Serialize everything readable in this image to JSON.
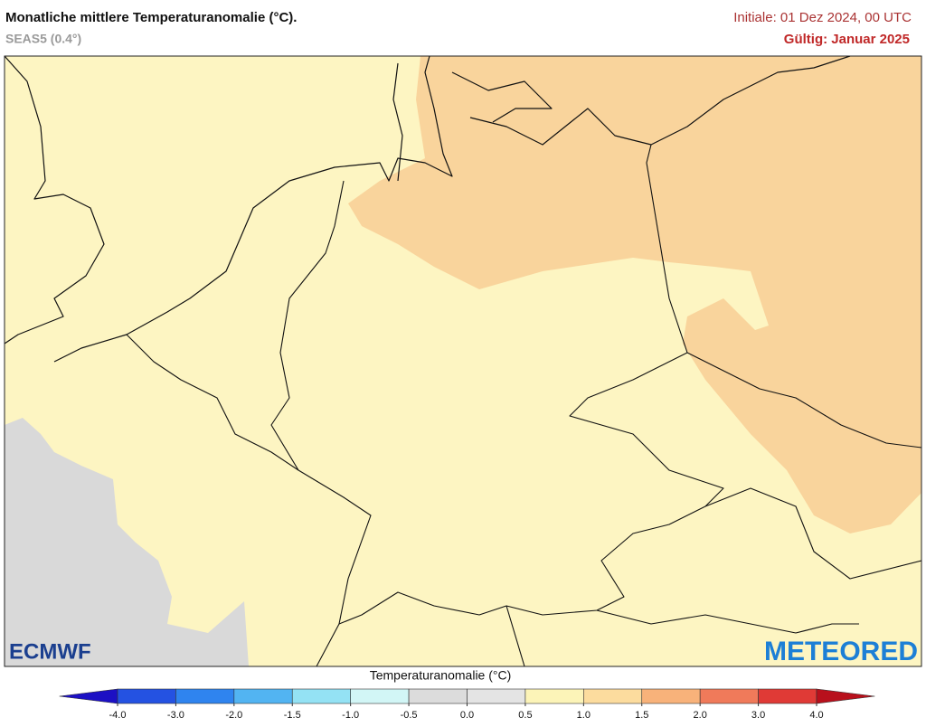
{
  "header": {
    "title": "Monatliche mittlere Temperaturanomalie (°C).",
    "subtitle": "SEAS5 (0.4°)",
    "initial": "Initiale: 01 Dez 2024, 00 UTC",
    "valid": "Gültig: Januar 2025"
  },
  "logos": {
    "left": "ECMWF",
    "right": "METEORED"
  },
  "legend": {
    "title": "Temperaturanomalie (°C)",
    "ticks": [
      {
        "value": -4,
        "label": "-4.0"
      },
      {
        "value": -3,
        "label": "-3.0"
      },
      {
        "value": -2,
        "label": "-2.0"
      },
      {
        "value": -1.5,
        "label": "-1.5"
      },
      {
        "value": -1,
        "label": "-1.0"
      },
      {
        "value": -0.5,
        "label": "-0.5"
      },
      {
        "value": 0,
        "label": "0.0"
      },
      {
        "value": 0.5,
        "label": "0.5"
      },
      {
        "value": 1,
        "label": "1.0"
      },
      {
        "value": 1.5,
        "label": "1.5"
      },
      {
        "value": 2,
        "label": "2.0"
      },
      {
        "value": 3,
        "label": "3.0"
      },
      {
        "value": 4,
        "label": "4.0"
      }
    ],
    "colors": [
      "#1c10c4",
      "#2452e2",
      "#2f84ef",
      "#52b4f2",
      "#94e2f4",
      "#d2f6f6",
      "#dcdcdc",
      "#e4e4e4",
      "#fcf4b8",
      "#fcdc9e",
      "#f8b27a",
      "#f07a5a",
      "#e03a36",
      "#b8101c"
    ]
  }
}
